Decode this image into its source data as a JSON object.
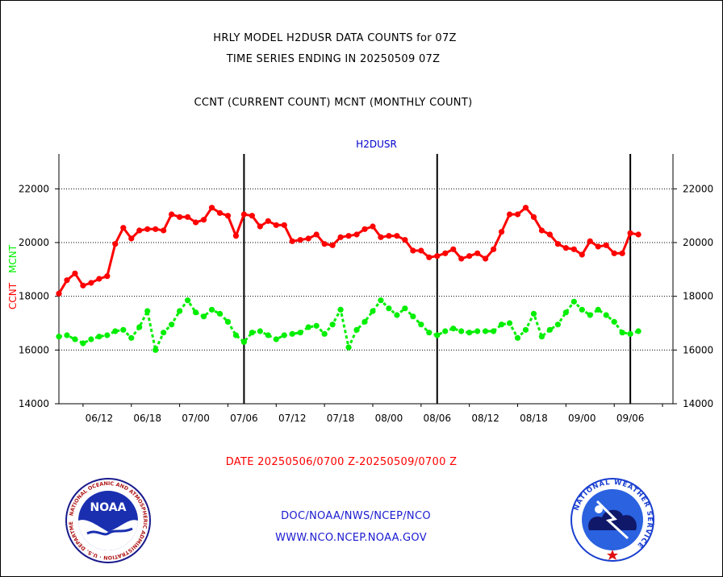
{
  "header": {
    "title_line1": "HRLY MODEL H2DUSR DATA COUNTS for 07Z",
    "title_line2": "TIME SERIES ENDING IN 20250509 07Z",
    "subtitle": "CCNT (CURRENT COUNT) MCNT (MONTHLY COUNT)"
  },
  "footer": {
    "date_range": "DATE 20250506/0700 Z-20250509/0700 Z",
    "org_path": "DOC/NOAA/NWS/NCEP/NCO",
    "url": "WWW.NCO.NCEP.NOAA.GOV"
  },
  "logos": {
    "noaa_center": "NOAA",
    "noaa_ring": "NATIONAL OCEANIC AND ATMOSPHERIC ADMINISTRATION · U.S. DEPARTMENT OF COMMERCE",
    "nws_ring": "NATIONAL WEATHER SERVICE"
  },
  "colors": {
    "ccnt": "#ff0000",
    "mcnt": "#00ee00",
    "label_blue": "#0000cc",
    "grid": "#000000"
  },
  "chart_data": {
    "type": "line",
    "title": "H2DUSR",
    "ylabel_left": [
      "CCNT",
      "MCNT"
    ],
    "ylim": [
      14000,
      23300
    ],
    "yticks": [
      14000,
      16000,
      18000,
      20000,
      22000
    ],
    "ytick_labels": [
      "14000",
      "16000",
      "18000",
      "20000",
      "22000"
    ],
    "xlim": [
      0,
      76.3
    ],
    "xticks": [
      3,
      9,
      15,
      21,
      27,
      33,
      39,
      45,
      51,
      57,
      63,
      69,
      75
    ],
    "xtick_labels": [
      "06/12",
      "06/18",
      "07/00",
      "07/06",
      "07/12",
      "07/18",
      "08/00",
      "08/06",
      "08/12",
      "08/18",
      "09/00",
      "09/06"
    ],
    "xtick_label_positions": [
      5,
      11,
      17,
      23,
      29,
      35,
      41,
      47,
      53,
      59,
      65,
      71
    ],
    "day_markers": [
      23,
      47,
      71
    ],
    "grid": "horizontal dotted",
    "series": [
      {
        "name": "CCNT",
        "color": "#ff0000",
        "x": [
          0,
          1,
          2,
          3,
          4,
          5,
          6,
          7,
          8,
          9,
          10,
          11,
          12,
          13,
          14,
          15,
          16,
          17,
          18,
          19,
          20,
          21,
          22,
          23,
          24,
          25,
          26,
          27,
          28,
          29,
          30,
          31,
          32,
          33,
          34,
          35,
          36,
          37,
          38,
          39,
          40,
          41,
          42,
          43,
          44,
          45,
          46,
          47,
          48,
          49,
          50,
          51,
          52,
          53,
          54,
          55,
          56,
          57,
          58,
          59,
          60,
          61,
          62,
          63,
          64,
          65,
          66,
          67,
          68,
          69,
          70,
          71,
          72
        ],
        "values": [
          18100,
          18600,
          18850,
          18400,
          18500,
          18650,
          18750,
          19950,
          20550,
          20150,
          20450,
          20500,
          20500,
          20450,
          21050,
          20950,
          20950,
          20750,
          20850,
          21300,
          21100,
          21000,
          20250,
          21050,
          21000,
          20600,
          20800,
          20650,
          20650,
          20050,
          20100,
          20150,
          20300,
          19950,
          19900,
          20200,
          20250,
          20300,
          20500,
          20600,
          20200,
          20250,
          20250,
          20100,
          19700,
          19700,
          19450,
          19500,
          19600,
          19750,
          19400,
          19500,
          19600,
          19400,
          19750,
          20400,
          21050,
          21050,
          21300,
          20950,
          20450,
          20300,
          19950,
          19800,
          19750,
          19550,
          20050,
          19850,
          19900,
          19600,
          19600,
          20350,
          20300
        ]
      },
      {
        "name": "MCNT",
        "color": "#00ee00",
        "x": [
          0,
          1,
          2,
          3,
          4,
          5,
          6,
          7,
          8,
          9,
          10,
          11,
          12,
          13,
          14,
          15,
          16,
          17,
          18,
          19,
          20,
          21,
          22,
          23,
          24,
          25,
          26,
          27,
          28,
          29,
          30,
          31,
          32,
          33,
          34,
          35,
          36,
          37,
          38,
          39,
          40,
          41,
          42,
          43,
          44,
          45,
          46,
          47,
          48,
          49,
          50,
          51,
          52,
          53,
          54,
          55,
          56,
          57,
          58,
          59,
          60,
          61,
          62,
          63,
          64,
          65,
          66,
          67,
          68,
          69,
          70,
          71,
          72
        ],
        "values": [
          16500,
          16550,
          16400,
          16250,
          16400,
          16500,
          16550,
          16700,
          16750,
          16450,
          16850,
          17450,
          16000,
          16650,
          16950,
          17450,
          17850,
          17400,
          17250,
          17500,
          17350,
          17050,
          16550,
          16300,
          16650,
          16700,
          16550,
          16400,
          16550,
          16600,
          16650,
          16850,
          16900,
          16600,
          16950,
          17500,
          16100,
          16750,
          17050,
          17450,
          17850,
          17550,
          17300,
          17550,
          17250,
          16950,
          16650,
          16550,
          16700,
          16800,
          16700,
          16650,
          16700,
          16700,
          16700,
          16950,
          17000,
          16450,
          16750,
          17350,
          16500,
          16750,
          16950,
          17400,
          17800,
          17500,
          17300,
          17500,
          17300,
          17050,
          16650,
          16600,
          16700
        ]
      }
    ]
  }
}
